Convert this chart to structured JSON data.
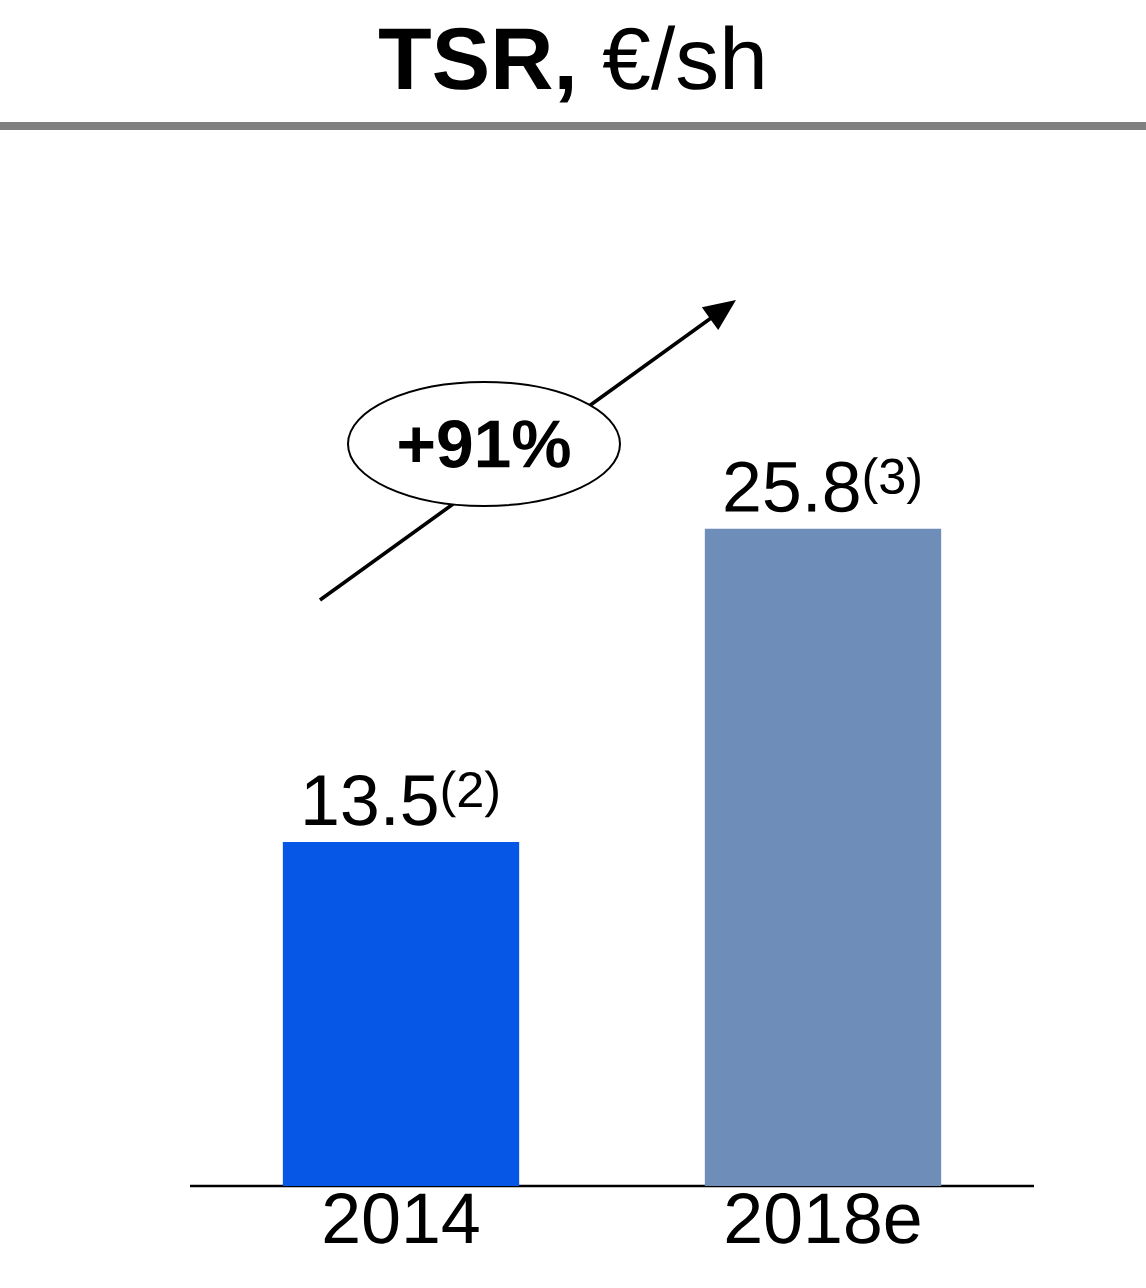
{
  "chart_data": {
    "type": "bar",
    "title": "**TSR,** €/sh",
    "categories": [
      "2014",
      "2018e"
    ],
    "values": [
      13.5,
      25.8
    ],
    "colors": [
      "#0757e6",
      "#6f8db9"
    ],
    "value_labels": [
      "13.5$^{(2)}$",
      "25.8$^{(3)}$"
    ],
    "annotations": [
      "+91%"
    ]
  }
}
